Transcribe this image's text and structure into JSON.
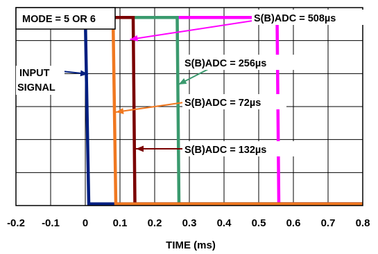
{
  "chart_data": {
    "type": "line",
    "title": "",
    "xlabel": "TIME (ms)",
    "ylabel": "",
    "xlim": [
      -0.2,
      0.8
    ],
    "ylim": [
      0,
      6
    ],
    "grid": true,
    "x_ticks": [
      "-0.2",
      "-0.1",
      "0",
      "0.1",
      "0.2",
      "0.3",
      "0.4",
      "0.5",
      "0.6",
      "0.7",
      "0.8"
    ],
    "annotations": {
      "mode": "MODE = 5 OR 6",
      "input_line1": "INPUT",
      "input_line2": "SIGNAL",
      "s508": "S(B)ADC = 508µs",
      "s256": "S(B)ADC = 256µs",
      "s72": "S(B)ADC = 72µs",
      "s132": "S(B)ADC = 132µs"
    },
    "series": [
      {
        "color": "#ff00ff",
        "x": [
          -0.2,
          0.553,
          0.558,
          0.8
        ],
        "y": [
          5.7,
          5.7,
          0.05,
          0.05
        ]
      },
      {
        "color": "#3a9a6e",
        "x": [
          -0.2,
          0.265,
          0.27,
          0.8
        ],
        "y": [
          5.7,
          5.7,
          0.05,
          0.05
        ]
      },
      {
        "color": "#7a0000",
        "x": [
          -0.2,
          0.138,
          0.143,
          0.8
        ],
        "y": [
          5.7,
          5.7,
          0.05,
          0.05
        ]
      },
      {
        "color": "#001e80",
        "x": [
          -0.2,
          0.0,
          0.01,
          0.8
        ],
        "y": [
          5.7,
          5.7,
          0.05,
          0.05
        ]
      },
      {
        "color": "#f07820",
        "x": [
          -0.2,
          0.08,
          0.088,
          0.8
        ],
        "y": [
          5.7,
          5.7,
          0.05,
          0.05
        ]
      }
    ]
  }
}
